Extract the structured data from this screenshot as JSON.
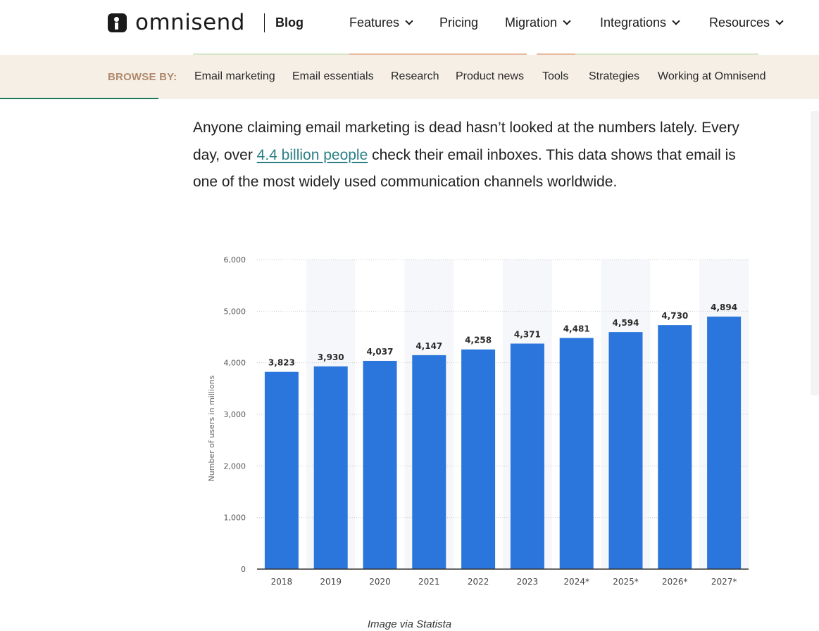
{
  "header": {
    "logo_text": "omnisend",
    "blog_label": "Blog",
    "nav": [
      {
        "label": "Features",
        "dropdown": true
      },
      {
        "label": "Pricing",
        "dropdown": false
      },
      {
        "label": "Migration",
        "dropdown": true
      },
      {
        "label": "Integrations",
        "dropdown": true
      },
      {
        "label": "Resources",
        "dropdown": true
      }
    ]
  },
  "browse": {
    "label": "BROWSE BY:",
    "items": [
      "Email marketing",
      "Email essentials",
      "Research",
      "Product news",
      "Tools",
      "Strategies",
      "Working at Omnisend"
    ]
  },
  "article": {
    "para_before_link": "Anyone claiming email marketing is dead hasn’t looked at the numbers lately. Every day, over ",
    "link_text": "4.4 billion people",
    "para_after_link": " check their email inboxes. This data shows that email is one of the most widely used communication channels worldwide.",
    "caption": "Image via Statista"
  },
  "colors": {
    "bar": "#2a76dc",
    "browse_bg": "#f6efe6",
    "browse_label": "#b08a6c",
    "link": "#2b7f86",
    "progress": "#1e7a5e"
  },
  "chart_data": {
    "type": "bar",
    "categories": [
      "2018",
      "2019",
      "2020",
      "2021",
      "2022",
      "2023",
      "2024*",
      "2025*",
      "2026*",
      "2027*"
    ],
    "values": [
      3823,
      3930,
      4037,
      4147,
      4258,
      4371,
      4481,
      4594,
      4730,
      4894
    ],
    "value_labels": [
      "3,823",
      "3,930",
      "4,037",
      "4,147",
      "4,258",
      "4,371",
      "4,481",
      "4,594",
      "4,730",
      "4,894"
    ],
    "ylabel": "Number of users in millions",
    "yticks": [
      "0",
      "1,000",
      "2,000",
      "3,000",
      "4,000",
      "5,000",
      "6,000"
    ],
    "ylim": [
      0,
      6000
    ],
    "grid": true
  }
}
